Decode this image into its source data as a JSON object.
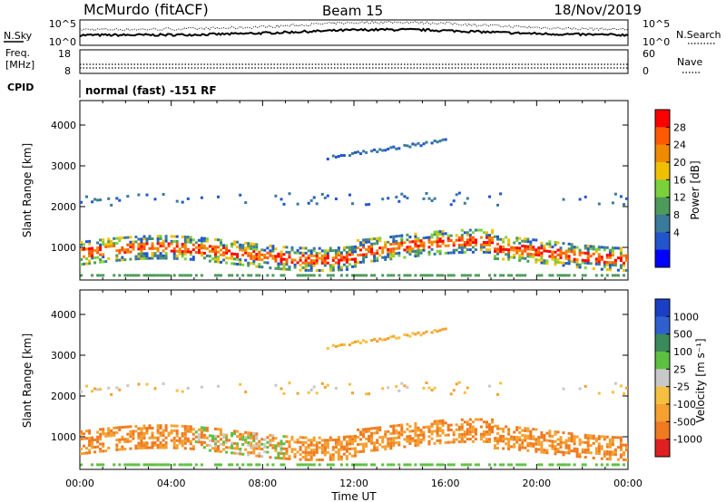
{
  "header": {
    "station": "McMurdo (fitACF)",
    "beam": "Beam 15",
    "date": "18/Nov/2019"
  },
  "top_panel": {
    "left_label": "N.Sky",
    "right_label": "N.Search",
    "left_ticks": [
      "10^5",
      "10^0"
    ],
    "right_ticks": [
      "10^5",
      "10^0"
    ]
  },
  "freq_panel": {
    "left_label_1": "Freq.",
    "left_label_2": "[MHz]",
    "left_ticks": [
      "18",
      "8"
    ],
    "right_ticks": [
      "60",
      "0"
    ],
    "right_label": "Nave",
    "cpid_label": "CPID",
    "cpid_text": "normal (fast) -151 RF"
  },
  "chart_data": [
    {
      "type": "heatmap",
      "name": "power",
      "ylabel": "Slant Range [km]",
      "ylim": [
        200,
        4600
      ],
      "yticks": [
        1000,
        2000,
        3000,
        4000
      ],
      "xlim": [
        0,
        24
      ],
      "colorbar": {
        "label": "Power [dB]",
        "ticks": [
          "28",
          "24",
          "20",
          "16",
          "12",
          "8",
          "4"
        ],
        "colors": [
          "#ff0000",
          "#ff5a00",
          "#f08a00",
          "#f0c000",
          "#7ad13c",
          "#4e9a5a",
          "#3a7a9a",
          "#2255cc",
          "#0000ff"
        ]
      },
      "regions": [
        {
          "desc": "E/F band",
          "t": [
            0,
            24
          ],
          "range": [
            650,
            1200
          ],
          "level": "high"
        },
        {
          "desc": "upper band",
          "t": [
            10,
            16
          ],
          "range": [
            3100,
            3600
          ],
          "level": "low"
        },
        {
          "desc": "mid patches",
          "t": [
            0,
            24
          ],
          "range": [
            1800,
            2300
          ],
          "level": "low"
        }
      ]
    },
    {
      "type": "heatmap",
      "name": "velocity",
      "ylabel": "Slant Range [km]",
      "ylim": [
        200,
        4600
      ],
      "yticks": [
        1000,
        2000,
        3000,
        4000
      ],
      "xlim": [
        0,
        24
      ],
      "xticks": [
        "00:00",
        "04:00",
        "08:00",
        "12:00",
        "16:00",
        "20:00",
        "00:00"
      ],
      "xlabel": "Time UT",
      "colorbar": {
        "label": "Velocity [m s⁻¹]",
        "ticks": [
          "1000",
          "500",
          "100",
          "25",
          "-25",
          "-100",
          "-500",
          "-1000"
        ],
        "colors": [
          "#1a3fc4",
          "#3060d0",
          "#3a8a5a",
          "#5cc040",
          "#c8c8c8",
          "#f5c040",
          "#f5a030",
          "#f07a20",
          "#e02020"
        ]
      }
    }
  ]
}
